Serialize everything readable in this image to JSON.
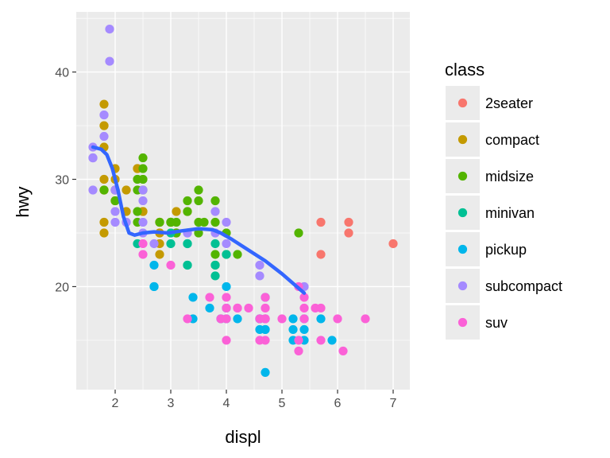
{
  "chart_data": {
    "type": "scatter",
    "xlabel": "displ",
    "ylabel": "hwy",
    "xlim": [
      1.3,
      7.3
    ],
    "ylim": [
      10.4,
      45.6
    ],
    "xticks": [
      2,
      3,
      4,
      5,
      6,
      7
    ],
    "yticks": [
      20,
      30,
      40
    ],
    "xminor": [
      1.5,
      2.5,
      3.5,
      4.5,
      5.5,
      6.5
    ],
    "yminor": [
      15,
      25,
      35,
      45
    ],
    "panel_background": "#ebebeb",
    "grid": true,
    "legend": {
      "title": "class",
      "position": "right"
    },
    "series": [
      {
        "name": "2seater",
        "color": "#F8766D",
        "points": [
          [
            5.7,
            26
          ],
          [
            5.7,
            23
          ],
          [
            6.2,
            26
          ],
          [
            6.2,
            25
          ],
          [
            7.0,
            24
          ]
        ]
      },
      {
        "name": "compact",
        "color": "#C49A00",
        "points": [
          [
            1.8,
            29
          ],
          [
            1.8,
            29
          ],
          [
            2.0,
            31
          ],
          [
            2.0,
            30
          ],
          [
            2.8,
            26
          ],
          [
            2.8,
            26
          ],
          [
            3.1,
            27
          ],
          [
            1.8,
            26
          ],
          [
            1.8,
            25
          ],
          [
            2.0,
            28
          ],
          [
            2.0,
            28
          ],
          [
            2.8,
            25
          ],
          [
            2.8,
            25
          ],
          [
            3.1,
            25
          ],
          [
            3.1,
            25
          ],
          [
            2.2,
            27
          ],
          [
            2.2,
            29
          ],
          [
            2.4,
            31
          ],
          [
            2.4,
            31
          ],
          [
            3.0,
            26
          ],
          [
            3.0,
            26
          ],
          [
            3.3,
            27
          ],
          [
            1.8,
            33
          ],
          [
            1.8,
            35
          ],
          [
            1.8,
            37
          ],
          [
            1.8,
            35
          ],
          [
            1.8,
            30
          ],
          [
            2.0,
            29
          ],
          [
            2.0,
            29
          ],
          [
            2.5,
            27
          ],
          [
            2.5,
            27
          ],
          [
            2.8,
            23
          ],
          [
            2.8,
            24
          ]
        ]
      },
      {
        "name": "midsize",
        "color": "#53B400",
        "points": [
          [
            1.8,
            29
          ],
          [
            2.0,
            28
          ],
          [
            2.0,
            29
          ],
          [
            2.4,
            26
          ],
          [
            2.4,
            27
          ],
          [
            2.4,
            30
          ],
          [
            2.4,
            29
          ],
          [
            2.5,
            32
          ],
          [
            2.5,
            31
          ],
          [
            2.5,
            30
          ],
          [
            2.5,
            29
          ],
          [
            3.0,
            26
          ],
          [
            3.0,
            26
          ],
          [
            3.1,
            25
          ],
          [
            3.3,
            28
          ],
          [
            3.3,
            27
          ],
          [
            3.5,
            29
          ],
          [
            3.5,
            28
          ],
          [
            3.5,
            26
          ],
          [
            3.5,
            25
          ],
          [
            3.8,
            28
          ],
          [
            3.8,
            26
          ],
          [
            3.8,
            23
          ],
          [
            3.8,
            22
          ],
          [
            4.0,
            23
          ],
          [
            4.0,
            25
          ],
          [
            4.2,
            23
          ],
          [
            5.3,
            25
          ],
          [
            2.8,
            26
          ],
          [
            3.0,
            26
          ],
          [
            3.1,
            26
          ],
          [
            3.6,
            26
          ]
        ]
      },
      {
        "name": "minivan",
        "color": "#00C094",
        "points": [
          [
            2.4,
            24
          ],
          [
            3.0,
            24
          ],
          [
            3.3,
            22
          ],
          [
            3.3,
            22
          ],
          [
            3.3,
            24
          ],
          [
            3.3,
            24
          ],
          [
            3.8,
            24
          ],
          [
            3.8,
            21
          ],
          [
            3.8,
            22
          ],
          [
            4.0,
            23
          ],
          [
            3.0,
            25
          ]
        ]
      },
      {
        "name": "pickup",
        "color": "#00B6EB",
        "points": [
          [
            2.7,
            20
          ],
          [
            2.7,
            20
          ],
          [
            2.7,
            22
          ],
          [
            3.4,
            19
          ],
          [
            3.4,
            17
          ],
          [
            3.7,
            18
          ],
          [
            3.9,
            17
          ],
          [
            4.0,
            20
          ],
          [
            4.0,
            17
          ],
          [
            4.2,
            17
          ],
          [
            4.6,
            17
          ],
          [
            4.7,
            17
          ],
          [
            4.7,
            16
          ],
          [
            4.7,
            12
          ],
          [
            5.2,
            16
          ],
          [
            5.2,
            15
          ],
          [
            5.2,
            17
          ],
          [
            5.4,
            15
          ],
          [
            5.7,
            17
          ],
          [
            5.9,
            15
          ],
          [
            4.6,
            16
          ],
          [
            4.6,
            17
          ],
          [
            4.7,
            16
          ],
          [
            4.7,
            19
          ],
          [
            5.4,
            17
          ],
          [
            5.4,
            16
          ],
          [
            4.0,
            18
          ]
        ]
      },
      {
        "name": "subcompact",
        "color": "#A58AFF",
        "points": [
          [
            1.6,
            33
          ],
          [
            1.6,
            32
          ],
          [
            1.6,
            32
          ],
          [
            1.6,
            29
          ],
          [
            1.6,
            32
          ],
          [
            1.8,
            34
          ],
          [
            1.8,
            36
          ],
          [
            1.8,
            36
          ],
          [
            1.9,
            44
          ],
          [
            1.9,
            41
          ],
          [
            2.0,
            29
          ],
          [
            2.0,
            26
          ],
          [
            2.0,
            29
          ],
          [
            2.0,
            27
          ],
          [
            2.2,
            26
          ],
          [
            2.2,
            26
          ],
          [
            2.5,
            29
          ],
          [
            2.5,
            28
          ],
          [
            2.5,
            26
          ],
          [
            2.5,
            25
          ],
          [
            3.3,
            25
          ],
          [
            3.3,
            25
          ],
          [
            3.8,
            27
          ],
          [
            4.0,
            26
          ],
          [
            4.0,
            24
          ],
          [
            4.6,
            22
          ],
          [
            4.6,
            21
          ],
          [
            5.4,
            20
          ],
          [
            2.7,
            24
          ],
          [
            3.8,
            25
          ]
        ]
      },
      {
        "name": "suv",
        "color": "#FB61D7",
        "points": [
          [
            2.5,
            23
          ],
          [
            2.5,
            24
          ],
          [
            3.0,
            22
          ],
          [
            3.3,
            17
          ],
          [
            3.7,
            19
          ],
          [
            3.9,
            17
          ],
          [
            4.0,
            17
          ],
          [
            4.0,
            19
          ],
          [
            4.0,
            15
          ],
          [
            4.2,
            18
          ],
          [
            4.4,
            18
          ],
          [
            4.6,
            17
          ],
          [
            4.7,
            17
          ],
          [
            4.7,
            19
          ],
          [
            4.7,
            15
          ],
          [
            5.0,
            17
          ],
          [
            5.3,
            14
          ],
          [
            5.3,
            15
          ],
          [
            5.4,
            17
          ],
          [
            5.4,
            19
          ],
          [
            5.6,
            18
          ],
          [
            5.7,
            18
          ],
          [
            5.7,
            15
          ],
          [
            6.0,
            17
          ],
          [
            6.1,
            14
          ],
          [
            6.5,
            17
          ],
          [
            4.6,
            15
          ],
          [
            4.7,
            17
          ],
          [
            5.3,
            20
          ],
          [
            4.0,
            18
          ],
          [
            4.2,
            18
          ],
          [
            5.4,
            18
          ],
          [
            4.7,
            18
          ],
          [
            4.7,
            17
          ]
        ]
      }
    ],
    "smooth": {
      "color": "#3366FF",
      "points": [
        [
          1.6,
          33.0
        ],
        [
          1.75,
          32.8
        ],
        [
          1.85,
          32.3
        ],
        [
          1.95,
          31.0
        ],
        [
          2.05,
          29.0
        ],
        [
          2.15,
          26.5
        ],
        [
          2.25,
          25.0
        ],
        [
          2.35,
          24.8
        ],
        [
          2.5,
          25.0
        ],
        [
          2.7,
          25.1
        ],
        [
          2.95,
          25.0
        ],
        [
          3.2,
          25.2
        ],
        [
          3.5,
          25.4
        ],
        [
          3.75,
          25.3
        ],
        [
          3.9,
          25.0
        ],
        [
          4.1,
          24.4
        ],
        [
          4.4,
          23.4
        ],
        [
          4.7,
          22.4
        ],
        [
          5.0,
          21.2
        ],
        [
          5.2,
          20.3
        ],
        [
          5.4,
          19.4
        ]
      ]
    }
  }
}
